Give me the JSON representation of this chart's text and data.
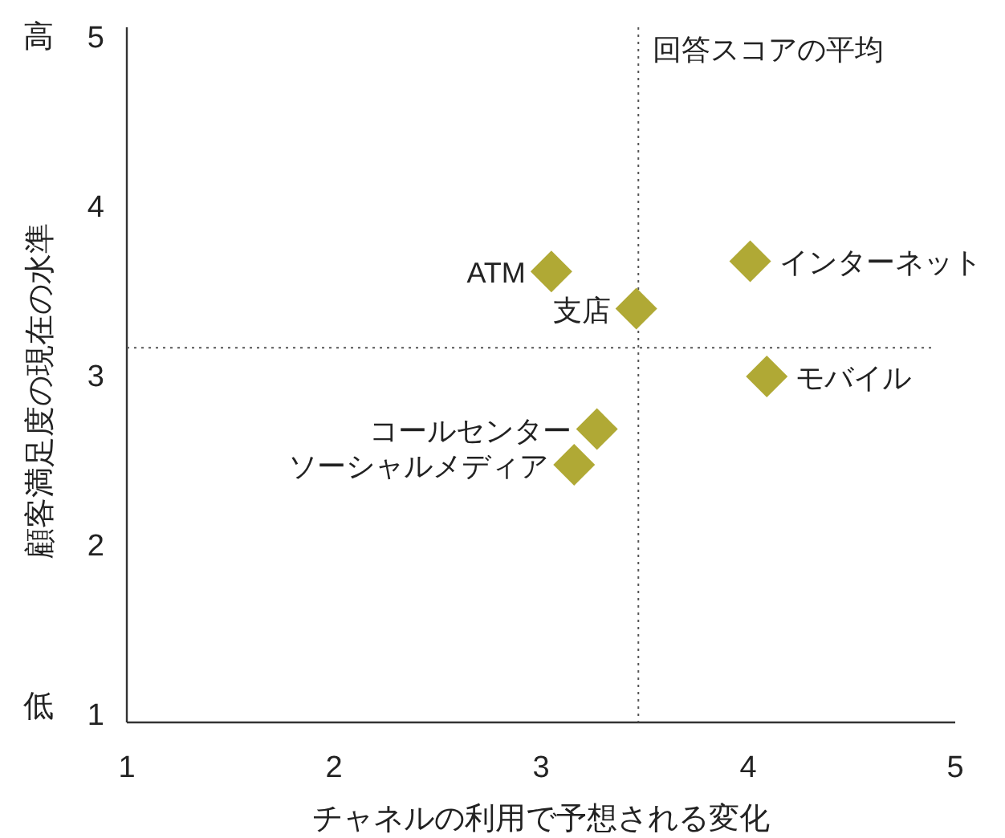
{
  "chart_data": {
    "type": "scatter",
    "xlabel": "チャネルの利用で予想される変化",
    "ylabel": "顧客満足度の現在の水準",
    "series": [
      {
        "color": "#b0a935",
        "x": [
          3.05,
          3.46,
          4.01,
          4.09,
          3.27,
          3.16
        ],
        "values": [
          3.61,
          3.39,
          3.67,
          2.99,
          2.68,
          2.47
        ]
      }
    ],
    "marker": "diamond",
    "xlim": [
      1,
      5
    ],
    "ylim": [
      0.95,
      5.05
    ],
    "xticks": [
      1,
      2,
      3,
      4,
      5
    ],
    "yticks": [
      1,
      2,
      3,
      4,
      5
    ],
    "grid": false,
    "ref_lines": [
      {
        "axis": "x",
        "value": 3.47,
        "label": "回答スコアの平均",
        "line_style": "dotted"
      },
      {
        "axis": "y",
        "value": 3.16,
        "label": null,
        "line_style": "dotted"
      }
    ],
    "annotations": [
      "高",
      "低",
      {
        "text": "ATM",
        "x": 3.05,
        "y": 3.61
      },
      {
        "text": "支店",
        "x": 3.46,
        "y": 3.39
      },
      {
        "text": "インターネット",
        "x": 4.01,
        "y": 3.67
      },
      {
        "text": "モバイル",
        "x": 4.09,
        "y": 2.99
      },
      {
        "text": "コールセンター",
        "x": 3.27,
        "y": 2.68
      },
      {
        "text": "ソーシャルメディア",
        "x": 3.16,
        "y": 2.47
      }
    ]
  }
}
